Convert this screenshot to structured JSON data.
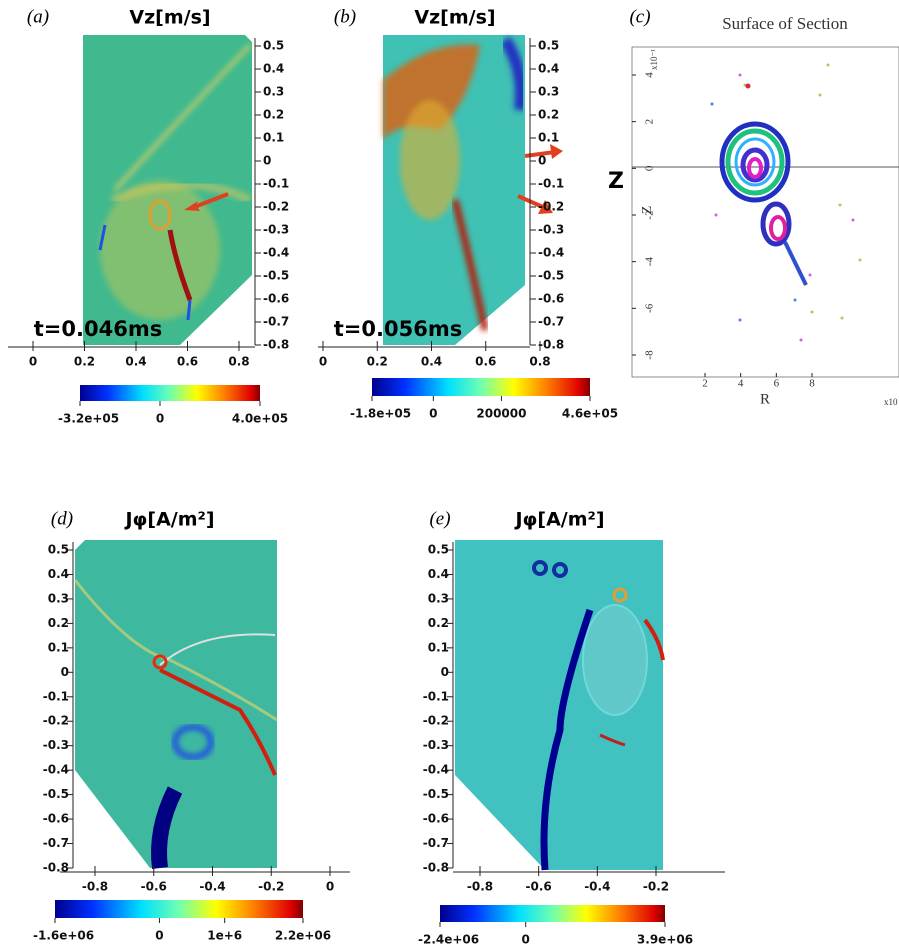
{
  "panels": [
    {
      "label": "(a)",
      "title": "Vz[m/s]",
      "time": "t=0.046ms",
      "yticks": [
        0.5,
        0.4,
        0.3,
        0.2,
        0.1,
        0,
        -0.1,
        -0.2,
        -0.3,
        -0.4,
        -0.5,
        -0.6,
        -0.7,
        -0.8
      ],
      "xticks": [
        0,
        0.2,
        0.4,
        0.6,
        0.8
      ],
      "colorbar_ticks": [
        {
          "value": -320000,
          "label": "-3.2e+05"
        },
        0,
        {
          "value": 400000,
          "label": "4.0e+05"
        }
      ]
    },
    {
      "label": "(b)",
      "title": "Vz[m/s]",
      "time": "t=0.056ms",
      "yticks": [
        0.5,
        0.4,
        0.3,
        0.2,
        0.1,
        0,
        -0.1,
        -0.2,
        -0.3,
        -0.4,
        -0.5,
        -0.6,
        -0.7,
        -0.8
      ],
      "xticks": [
        0,
        0.2,
        0.4,
        0.6,
        0.8
      ],
      "colorbar_ticks": [
        {
          "value": -180000,
          "label": "-1.8e+05"
        },
        0,
        200000,
        {
          "value": 460000,
          "label": "4.6e+05"
        }
      ]
    },
    {
      "label": "(c)",
      "title": "Surface of Section",
      "xlabel": "R",
      "ylabel": "Z",
      "side_label": "Z",
      "xticks": [
        2,
        4,
        6,
        8
      ],
      "yticks": [
        4,
        2,
        0,
        -2,
        -4,
        -6,
        -8
      ],
      "x_exponent": "x10",
      "y_exponent": "x10⁻¹"
    },
    {
      "label": "(d)",
      "title": "Jφ[A/m²]",
      "yticks": [
        0.5,
        0.4,
        0.3,
        0.2,
        0.1,
        0,
        -0.1,
        -0.2,
        -0.3,
        -0.4,
        -0.5,
        -0.6,
        -0.7,
        -0.8
      ],
      "xticks": [
        -0.8,
        -0.6,
        -0.4,
        -0.2,
        0
      ],
      "colorbar_ticks": [
        {
          "value": -1600000,
          "label": "-1.6e+06"
        },
        0,
        {
          "value": 1000000,
          "label": "1e+6"
        },
        {
          "value": 2200000,
          "label": "2.2e+06"
        }
      ]
    },
    {
      "label": "(e)",
      "title": "Jφ[A/m²]",
      "yticks": [
        0.5,
        0.4,
        0.3,
        0.2,
        0.1,
        0,
        -0.1,
        -0.2,
        -0.3,
        -0.4,
        -0.5,
        -0.6,
        -0.7,
        -0.8
      ],
      "xticks": [
        -0.8,
        -0.6,
        -0.4,
        -0.2
      ],
      "colorbar_ticks": [
        {
          "value": -2400000,
          "label": "-2.4e+06"
        },
        0,
        {
          "value": 3900000,
          "label": "3.9e+06"
        }
      ]
    }
  ]
}
